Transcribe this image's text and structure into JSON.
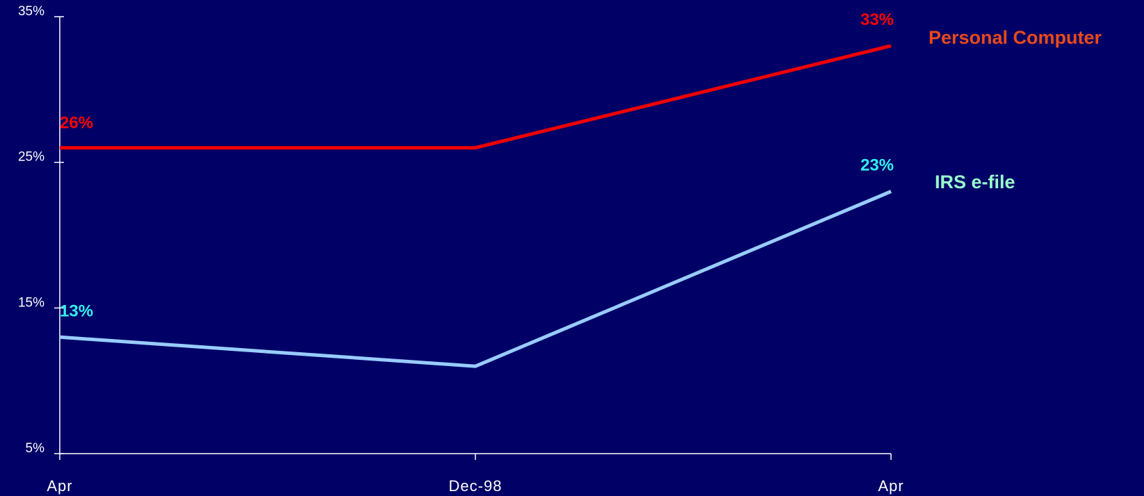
{
  "chart_data": {
    "type": "line",
    "title": "",
    "xlabel": "",
    "ylabel": "",
    "categories": [
      "Apr",
      "Dec-98",
      "Apr"
    ],
    "y_ticks": [
      "5%",
      "15%",
      "25%",
      "35%"
    ],
    "ylim": [
      5,
      35
    ],
    "grid": false,
    "legend_placement": "right",
    "series": [
      {
        "name": "Personal Computer",
        "values": [
          26,
          26,
          33
        ],
        "color": "#ee0000",
        "label_color": "#ff0000",
        "legend_color": "#e84a1a",
        "point_labels": [
          "26%",
          "",
          "33%"
        ]
      },
      {
        "name": "IRS e-file",
        "values": [
          13,
          11,
          23
        ],
        "color": "#99ccff",
        "label_color": "#33eeee",
        "legend_color": "#99ffcc",
        "point_labels": [
          "13%",
          "",
          "23%"
        ]
      }
    ]
  }
}
